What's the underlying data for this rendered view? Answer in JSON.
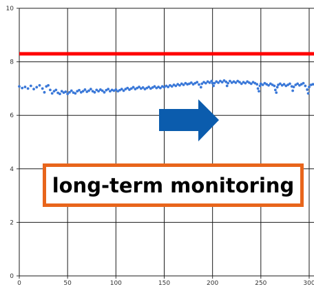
{
  "chart_data": {
    "type": "scatter",
    "title": "",
    "xlabel": "",
    "ylabel": "",
    "xlim": [
      0,
      305
    ],
    "ylim": [
      0,
      10
    ],
    "x_ticks": [
      0,
      50,
      100,
      150,
      200,
      250,
      300
    ],
    "y_ticks": [
      0,
      2,
      4,
      6,
      8,
      10
    ],
    "grid": true,
    "threshold_line": {
      "y": 8.3,
      "color": "#ff0000"
    },
    "series": [
      {
        "color": "#3a78d8",
        "points": [
          [
            0,
            7.08
          ],
          [
            3,
            7.02
          ],
          [
            6,
            7.06
          ],
          [
            9,
            7.0
          ],
          [
            12,
            7.1
          ],
          [
            15,
            6.98
          ],
          [
            18,
            7.05
          ],
          [
            21,
            7.12
          ],
          [
            24,
            7.0
          ],
          [
            26,
            6.86
          ],
          [
            28,
            7.08
          ],
          [
            30,
            7.12
          ],
          [
            32,
            6.95
          ],
          [
            34,
            6.82
          ],
          [
            36,
            6.9
          ],
          [
            38,
            6.95
          ],
          [
            40,
            6.84
          ],
          [
            42,
            6.8
          ],
          [
            44,
            6.9
          ],
          [
            46,
            6.85
          ],
          [
            48,
            6.88
          ],
          [
            50,
            6.8
          ],
          [
            52,
            6.86
          ],
          [
            54,
            6.92
          ],
          [
            56,
            6.85
          ],
          [
            58,
            6.82
          ],
          [
            60,
            6.9
          ],
          [
            62,
            6.94
          ],
          [
            64,
            6.86
          ],
          [
            66,
            6.9
          ],
          [
            68,
            6.96
          ],
          [
            70,
            6.88
          ],
          [
            72,
            6.92
          ],
          [
            74,
            6.98
          ],
          [
            76,
            6.9
          ],
          [
            78,
            6.86
          ],
          [
            80,
            6.95
          ],
          [
            82,
            6.9
          ],
          [
            84,
            6.96
          ],
          [
            86,
            6.92
          ],
          [
            88,
            6.86
          ],
          [
            90,
            6.94
          ],
          [
            92,
            6.98
          ],
          [
            94,
            6.9
          ],
          [
            96,
            6.95
          ],
          [
            98,
            6.92
          ],
          [
            100,
            6.96
          ],
          [
            102,
            6.9
          ],
          [
            104,
            6.94
          ],
          [
            106,
            6.98
          ],
          [
            108,
            6.92
          ],
          [
            110,
            6.98
          ],
          [
            112,
            7.02
          ],
          [
            114,
            6.96
          ],
          [
            116,
            7.0
          ],
          [
            118,
            7.05
          ],
          [
            120,
            6.98
          ],
          [
            122,
            7.02
          ],
          [
            124,
            7.06
          ],
          [
            126,
            7.0
          ],
          [
            128,
            7.04
          ],
          [
            130,
            6.98
          ],
          [
            132,
            7.02
          ],
          [
            134,
            7.06
          ],
          [
            136,
            7.0
          ],
          [
            138,
            7.04
          ],
          [
            140,
            7.08
          ],
          [
            142,
            7.02
          ],
          [
            144,
            7.06
          ],
          [
            146,
            7.02
          ],
          [
            148,
            7.08
          ],
          [
            150,
            7.05
          ],
          [
            152,
            7.1
          ],
          [
            154,
            7.06
          ],
          [
            156,
            7.12
          ],
          [
            158,
            7.08
          ],
          [
            160,
            7.14
          ],
          [
            162,
            7.1
          ],
          [
            164,
            7.16
          ],
          [
            166,
            7.12
          ],
          [
            168,
            7.18
          ],
          [
            170,
            7.14
          ],
          [
            172,
            7.2
          ],
          [
            174,
            7.16
          ],
          [
            176,
            7.18
          ],
          [
            178,
            7.22
          ],
          [
            180,
            7.16
          ],
          [
            182,
            7.2
          ],
          [
            184,
            7.24
          ],
          [
            186,
            7.15
          ],
          [
            188,
            7.05
          ],
          [
            189,
            7.18
          ],
          [
            191,
            7.24
          ],
          [
            193,
            7.2
          ],
          [
            195,
            7.26
          ],
          [
            197,
            7.22
          ],
          [
            199,
            7.28
          ],
          [
            200,
            7.2
          ],
          [
            201,
            7.1
          ],
          [
            202,
            7.2
          ],
          [
            204,
            7.26
          ],
          [
            206,
            7.22
          ],
          [
            208,
            7.28
          ],
          [
            210,
            7.24
          ],
          [
            212,
            7.3
          ],
          [
            214,
            7.25
          ],
          [
            215,
            7.1
          ],
          [
            216,
            7.2
          ],
          [
            218,
            7.28
          ],
          [
            220,
            7.22
          ],
          [
            222,
            7.26
          ],
          [
            224,
            7.22
          ],
          [
            226,
            7.28
          ],
          [
            228,
            7.24
          ],
          [
            230,
            7.18
          ],
          [
            232,
            7.24
          ],
          [
            234,
            7.2
          ],
          [
            236,
            7.26
          ],
          [
            238,
            7.22
          ],
          [
            240,
            7.18
          ],
          [
            242,
            7.24
          ],
          [
            244,
            7.2
          ],
          [
            246,
            7.16
          ],
          [
            247,
            7.0
          ],
          [
            248,
            6.9
          ],
          [
            249,
            7.1
          ],
          [
            250,
            7.18
          ],
          [
            252,
            7.14
          ],
          [
            254,
            7.2
          ],
          [
            256,
            7.16
          ],
          [
            258,
            7.12
          ],
          [
            260,
            7.18
          ],
          [
            262,
            7.14
          ],
          [
            264,
            7.1
          ],
          [
            265,
            6.95
          ],
          [
            266,
            6.85
          ],
          [
            267,
            7.05
          ],
          [
            268,
            7.14
          ],
          [
            270,
            7.18
          ],
          [
            272,
            7.12
          ],
          [
            274,
            7.16
          ],
          [
            276,
            7.1
          ],
          [
            278,
            7.14
          ],
          [
            280,
            7.18
          ],
          [
            282,
            7.08
          ],
          [
            283,
            6.92
          ],
          [
            284,
            7.06
          ],
          [
            286,
            7.14
          ],
          [
            288,
            7.18
          ],
          [
            290,
            7.12
          ],
          [
            292,
            7.16
          ],
          [
            294,
            7.2
          ],
          [
            296,
            7.1
          ],
          [
            298,
            6.96
          ],
          [
            299,
            6.82
          ],
          [
            300,
            7.06
          ],
          [
            302,
            7.14
          ],
          [
            304,
            7.16
          ]
        ]
      }
    ],
    "annotations": {
      "callout_text": "long-term monitoring",
      "callout_border_color": "#e8651b",
      "arrow_color": "#0b5cad",
      "arrow_direction": "right"
    }
  }
}
